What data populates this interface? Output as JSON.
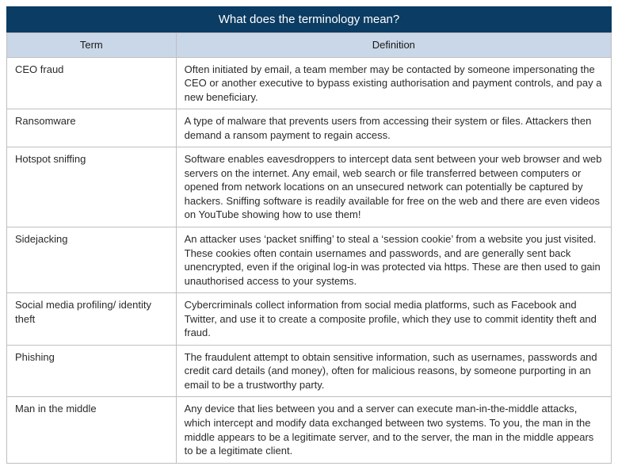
{
  "title": "What does the terminology mean?",
  "title_bg": "#0b3c63",
  "title_color": "#ffffff",
  "header_bg": "#c9d7e8",
  "header_color": "#1a1a1a",
  "border_color": "#bfbfbf",
  "cell_color": "#2a2a2a",
  "columns": [
    "Term",
    "Definition"
  ],
  "rows": [
    {
      "term": "CEO fraud",
      "definition": "Often initiated by email, a team member may be contacted by someone impersonating the CEO or another executive to bypass existing authorisation and payment controls, and pay a new beneficiary."
    },
    {
      "term": "Ransomware",
      "definition": "A type of malware that prevents users from accessing their system or files. Attackers then demand a ransom payment to regain access."
    },
    {
      "term": "Hotspot sniffing",
      "definition": "Software enables eavesdroppers to intercept data sent between your web browser and web servers on the internet. Any email, web search or file transferred between computers or opened from network locations on an unsecured network can potentially be captured by hackers. Sniffing software is readily available for free on the web and there are even videos on YouTube showing how to use them!"
    },
    {
      "term": "Sidejacking",
      "definition": "An attacker uses ‘packet sniffing’ to steal a ‘session cookie’ from a website you just visited. These cookies often contain usernames and passwords, and are generally sent back unencrypted, even if the original log-in was protected via https. These are then used to gain unauthorised access to your systems."
    },
    {
      "term": "Social media profiling/ identity theft",
      "definition": "Cybercriminals collect information from social media platforms, such as Facebook and Twitter, and use it to create a composite profile, which they use to commit identity theft and fraud."
    },
    {
      "term": "Phishing",
      "definition": "The fraudulent attempt to obtain sensitive information, such as usernames, passwords and credit card details (and money), often for malicious reasons, by someone purporting in an email to be a trustworthy party."
    },
    {
      "term": "Man in the middle",
      "definition": "Any device that lies between you and a server can execute man-in-the-middle attacks, which intercept and modify data exchanged between two systems. To you, the man in the middle appears to be a legitimate server, and to the server, the man in the middle appears to be a legitimate client."
    }
  ]
}
